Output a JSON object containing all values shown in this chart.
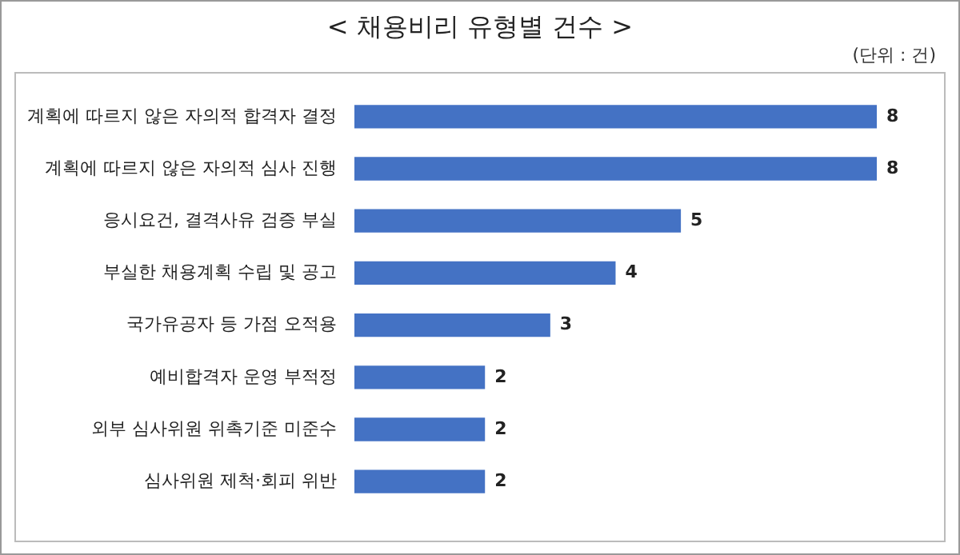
{
  "chart_data": {
    "type": "bar",
    "orientation": "horizontal",
    "title": "< 채용비리 유형별 건수 >",
    "subtitle": "(단위 : 건)",
    "categories": [
      "계획에 따르지 않은 자의적 합격자 결정",
      "계획에 따르지 않은 자의적 심사 진행",
      "응시요건, 결격사유 검증 부실",
      "부실한 채용계획 수립 및 공고",
      "국가유공자 등 가점 오적용",
      "예비합격자 운영 부적정",
      "외부 심사위원 위촉기준 미준수",
      "심사위원 제척·회피 위반"
    ],
    "values": [
      8,
      8,
      5,
      4,
      3,
      2,
      2,
      2
    ],
    "color": "#4472c4",
    "data_labels": true
  }
}
